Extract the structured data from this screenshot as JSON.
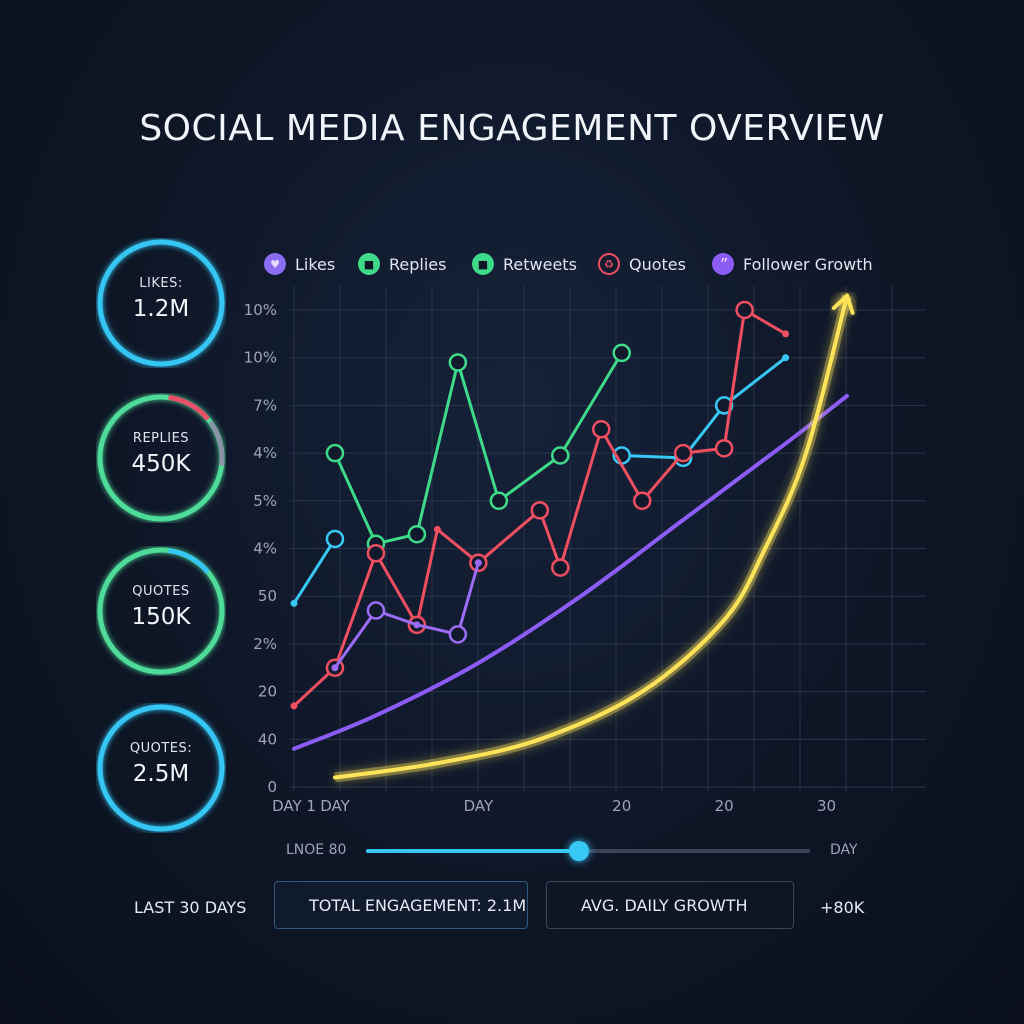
{
  "title": "SOCIAL MEDIA ENGAGEMENT OVERVIEW",
  "kpis": [
    {
      "label": "LIKES:",
      "value": "1.2M",
      "color": "#35c6f4",
      "progress": 1.0
    },
    {
      "label": "REPLIES",
      "value": "450K",
      "color": "#4fdc9a",
      "progress": 1.0,
      "accent_colors": [
        "#e8506a",
        "#8893a6"
      ]
    },
    {
      "label": "QUOTES",
      "value": "150K",
      "color": "#4fdc9a",
      "progress": 1.0,
      "accent_colors": [
        "#35c6f4"
      ]
    },
    {
      "label": "QUOTES:",
      "value": "2.5M",
      "color": "#35c6f4",
      "progress": 1.0
    }
  ],
  "legend": [
    {
      "name": "Likes",
      "icon": "heart-icon",
      "color": "#8b6cf0"
    },
    {
      "name": "Replies",
      "icon": "speech-bubble-icon",
      "color": "#3fd98a"
    },
    {
      "name": "Retweets",
      "icon": "speech-bubble-icon",
      "color": "#3fd98a"
    },
    {
      "name": "Quotes",
      "icon": "recycle-icon",
      "color": "#ef4f60"
    },
    {
      "name": "Follower Growth",
      "icon": "quote-marks-icon",
      "color": "#8b5cf6"
    }
  ],
  "chart_data": {
    "type": "line",
    "title": "SOCIAL MEDIA ENGAGEMENT OVERVIEW",
    "y_tick_labels": [
      "0",
      "40",
      "20",
      "2%",
      "50",
      "4%",
      "5%",
      "4%",
      "7%",
      "10%",
      "10%"
    ],
    "x_tick_labels": [
      "DAY 1",
      "DAY",
      "DAY",
      "20",
      "20",
      "30"
    ],
    "x_tick_days": [
      1,
      3,
      10,
      17,
      22,
      27
    ],
    "xlim": [
      1,
      30
    ],
    "ylim": [
      0,
      10
    ],
    "grid": true,
    "legend_position": "top",
    "series": [
      {
        "name": "Likes",
        "color": "#37c8f5",
        "markers": true,
        "points": [
          [
            1,
            3.85
          ],
          [
            3,
            5.2
          ],
          null,
          [
            17,
            6.95
          ],
          [
            20,
            6.9
          ],
          [
            22,
            8.0
          ],
          [
            25,
            9.0
          ]
        ],
        "marker_days": [
          3,
          17,
          20,
          22
        ]
      },
      {
        "name": "Replies",
        "color": "#3fd98a",
        "markers": true,
        "points": [
          [
            3,
            7.0
          ],
          [
            5,
            5.1
          ],
          [
            7,
            5.3
          ],
          [
            9,
            8.9
          ],
          [
            11,
            6.0
          ],
          [
            14,
            6.95
          ],
          [
            17,
            9.1
          ]
        ]
      },
      {
        "name": "Quotes",
        "color": "#ef4f60",
        "markers": true,
        "points": [
          [
            1,
            1.7
          ],
          [
            3,
            2.5
          ],
          [
            5,
            4.9
          ],
          [
            7,
            3.4
          ],
          [
            8,
            5.4
          ],
          [
            10,
            4.7
          ],
          [
            13,
            5.8
          ],
          [
            14,
            4.6
          ],
          [
            16,
            7.5
          ],
          [
            18,
            6.0
          ],
          [
            20,
            7.0
          ],
          [
            22,
            7.1
          ],
          [
            23,
            10.0
          ],
          [
            25,
            9.5
          ]
        ],
        "marker_days": [
          3,
          5,
          7,
          10,
          13,
          14,
          16,
          18,
          20,
          22,
          23
        ]
      },
      {
        "name": "Retweets",
        "color": "#9b6cf5",
        "markers": true,
        "points": [
          [
            3,
            2.5
          ],
          [
            5,
            3.7
          ],
          [
            7,
            3.4
          ],
          [
            9,
            3.2
          ],
          [
            10,
            4.7
          ]
        ],
        "marker_days": [
          5,
          9
        ]
      },
      {
        "name": "Follower Growth",
        "color": "#8b5cf6",
        "markers": false,
        "points": [
          [
            1,
            0.8
          ],
          [
            5,
            1.5
          ],
          [
            10,
            2.6
          ],
          [
            15,
            4.0
          ],
          [
            20,
            5.6
          ],
          [
            25,
            7.2
          ],
          [
            28,
            8.2
          ]
        ]
      },
      {
        "name": "",
        "color": "#ffe45a",
        "markers": false,
        "glow": true,
        "arrow": true,
        "points": [
          [
            3,
            0.2
          ],
          [
            8,
            0.5
          ],
          [
            13,
            1.0
          ],
          [
            18,
            2.0
          ],
          [
            22,
            3.5
          ],
          [
            24,
            5.0
          ],
          [
            26,
            7.0
          ],
          [
            28,
            10.3
          ]
        ]
      }
    ]
  },
  "slider": {
    "left_label": "LNOE 80",
    "right_label": "DAY",
    "value": 0.48,
    "color": "#37c8f5"
  },
  "footer": {
    "range_label": "LAST 30 DAYS",
    "total_label": "TOTAL ENGAGEMENT: 2.1M",
    "growth_label": "AVG. DAILY GROWTH",
    "growth_value": "+80K"
  }
}
